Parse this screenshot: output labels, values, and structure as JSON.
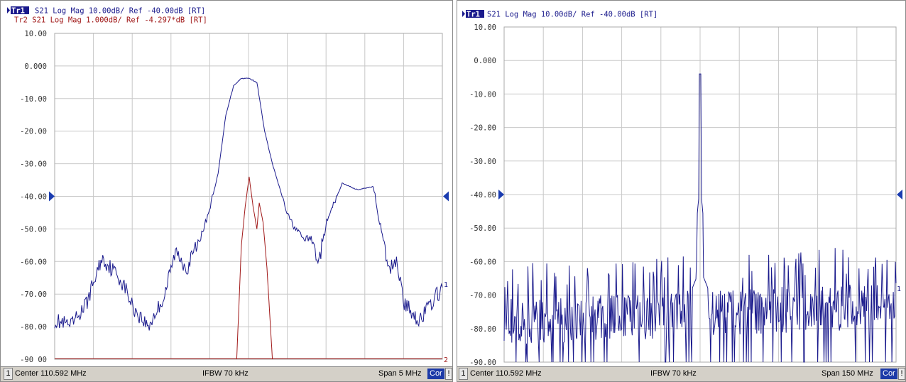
{
  "colors": {
    "tr1": "#1a1a8c",
    "tr2": "#a01818",
    "grid": "#c8c8c8",
    "status_bg": "#d4d0c8",
    "cor": "#1c3aa8"
  },
  "chart_data": [
    {
      "type": "line",
      "header": {
        "tr1_badge": "Tr1",
        "tr1_text": "S21 Log Mag 10.00dB/ Ref -40.00dB [RT]",
        "tr2_text": "Tr2 S21 Log Mag 1.000dB/ Ref -4.297*dB [RT]"
      },
      "y_ticks": [
        "10.00",
        "0.000",
        "-10.00",
        "-20.00",
        "-30.00",
        "-40.00",
        "-50.00",
        "-60.00",
        "-70.00",
        "-80.00",
        "-90 00"
      ],
      "ylim": [
        -90,
        10
      ],
      "xlim": [
        108.092,
        113.092
      ],
      "x_unit": "MHz",
      "series": [
        {
          "name": "Tr1",
          "x": [
            108.092,
            108.3,
            108.5,
            108.7,
            108.9,
            109.0,
            109.1,
            109.3,
            109.5,
            109.65,
            109.8,
            110.0,
            110.1,
            110.2,
            110.3,
            110.4,
            110.5,
            110.6,
            110.7,
            110.8,
            110.9,
            111.0,
            111.1,
            111.2,
            111.3,
            111.4,
            111.5,
            111.6,
            111.7,
            111.8,
            112.0,
            112.2,
            112.4,
            112.5,
            112.6,
            112.8,
            113.0,
            113.092
          ],
          "values": [
            -78,
            -80,
            -73,
            -59,
            -64,
            -68,
            -74,
            -80,
            -71,
            -57,
            -62,
            -51,
            -43,
            -33,
            -15,
            -6,
            -3.8,
            -3.8,
            -5,
            -20,
            -30,
            -38,
            -46,
            -50,
            -53,
            -53,
            -60,
            -48,
            -42,
            -36,
            -38,
            -37,
            -63,
            -59,
            -73,
            -78,
            -71,
            -68
          ]
        },
        {
          "name": "Tr2",
          "x": [
            110.44,
            110.5,
            110.55,
            110.6,
            110.65,
            110.7,
            110.73,
            110.78,
            110.83,
            110.9
          ],
          "values": [
            -90,
            -55,
            -43,
            -34,
            -43,
            -50,
            -42,
            -48,
            -62,
            -90
          ]
        }
      ],
      "footer": {
        "channel": "1",
        "center": "Center 110.592 MHz",
        "ifbw": "IFBW 70 kHz",
        "span": "Span 5 MHz",
        "cor": "Cor",
        "excl": "!"
      },
      "marker_labels": {
        "tr1": "1",
        "tr2": "2"
      }
    },
    {
      "type": "line",
      "header": {
        "tr1_badge": "Tr1",
        "tr1_text": "S21 Log Mag 10.00dB/ Ref -40.00dB [RT]"
      },
      "y_ticks": [
        "10.00",
        "0.000",
        "-10.00",
        "-20.00",
        "-30.00",
        "-40.00",
        "-50.00",
        "-60.00",
        "-70.00",
        "-80.00",
        "-90.00"
      ],
      "ylim": [
        -90,
        10
      ],
      "xlim": [
        35.592,
        185.592
      ],
      "x_unit": "MHz",
      "series": [
        {
          "name": "Tr1",
          "noise_floor": -78,
          "peak": {
            "x": 110.592,
            "value": -4
          },
          "side_peaks": [
            {
              "x": 110.0,
              "value": -37
            },
            {
              "x": 111.1,
              "value": -37
            }
          ],
          "x": [
            35.592,
            110.592,
            185.592
          ],
          "values": [
            -78,
            -4,
            -72
          ]
        }
      ],
      "footer": {
        "channel": "1",
        "center": "Center 110.592 MHz",
        "ifbw": "IFBW 70 kHz",
        "span": "Span 150 MHz",
        "cor": "Cor",
        "excl": "!"
      },
      "marker_labels": {
        "tr1": "1"
      }
    }
  ]
}
